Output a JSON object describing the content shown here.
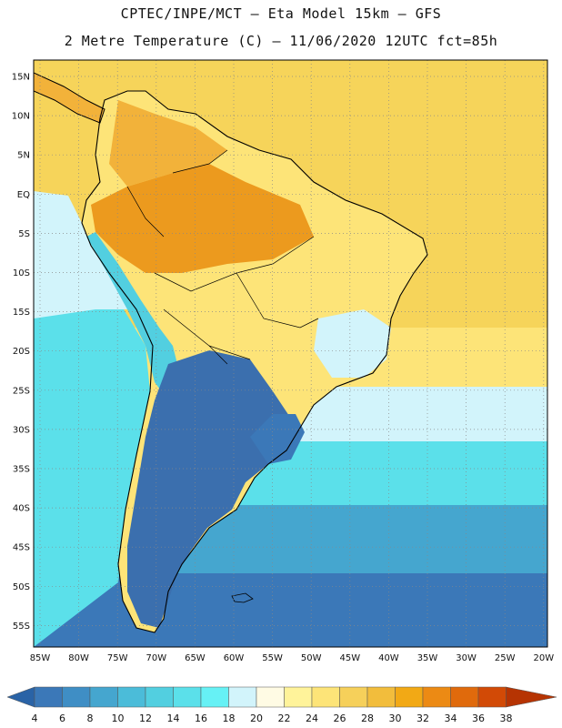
{
  "header": {
    "line1": "CPTEC/INPE/MCT –  Eta Model 15km – GFS",
    "line2": "2 Metre Temperature (C) – 11/06/2020 12UTC fct=85h"
  },
  "axes": {
    "lat_labels": [
      "15N",
      "10N",
      "5N",
      "EQ",
      "5S",
      "10S",
      "15S",
      "20S",
      "25S",
      "30S",
      "35S",
      "40S",
      "45S",
      "50S",
      "55S"
    ],
    "lon_labels": [
      "85W",
      "80W",
      "75W",
      "70W",
      "65W",
      "60W",
      "55W",
      "50W",
      "45W",
      "40W",
      "35W",
      "30W",
      "25W",
      "20W"
    ]
  },
  "colorbar": {
    "labels": [
      "4",
      "6",
      "8",
      "10",
      "12",
      "14",
      "16",
      "18",
      "20",
      "22",
      "24",
      "26",
      "28",
      "30",
      "32",
      "34",
      "36",
      "38"
    ],
    "colors": [
      "#2a63a6",
      "#3b78b8",
      "#3f8ec5",
      "#45a6cf",
      "#4bbcd9",
      "#52cfe0",
      "#5be0ea",
      "#66f1f5",
      "#d2f4fb",
      "#fffbe4",
      "#fff39a",
      "#fde478",
      "#f6d05a",
      "#f2bd3c",
      "#f2a915",
      "#ec8a14",
      "#e06a0c",
      "#d24a06",
      "#b63403"
    ],
    "colors_note": "first=under-range arrow, last=over-range arrow"
  },
  "map": {
    "ocean_colors": {
      "tropical": "#f6d45a",
      "subtropical": "#fde478",
      "transition": "#d2f4fb",
      "mid": "#5be0ea",
      "cool": "#45a6cf",
      "cold": "#3b78b8"
    },
    "land_colors": {
      "amazon_hot": "#ec9a1e",
      "north_warm": "#f2b23a",
      "central_brazil": "#fde478",
      "southeast": "#d2f4fb",
      "andes": "#52cfe0",
      "southern_cone": "#3b6fae",
      "patagonia": "#2f5f9f"
    }
  }
}
